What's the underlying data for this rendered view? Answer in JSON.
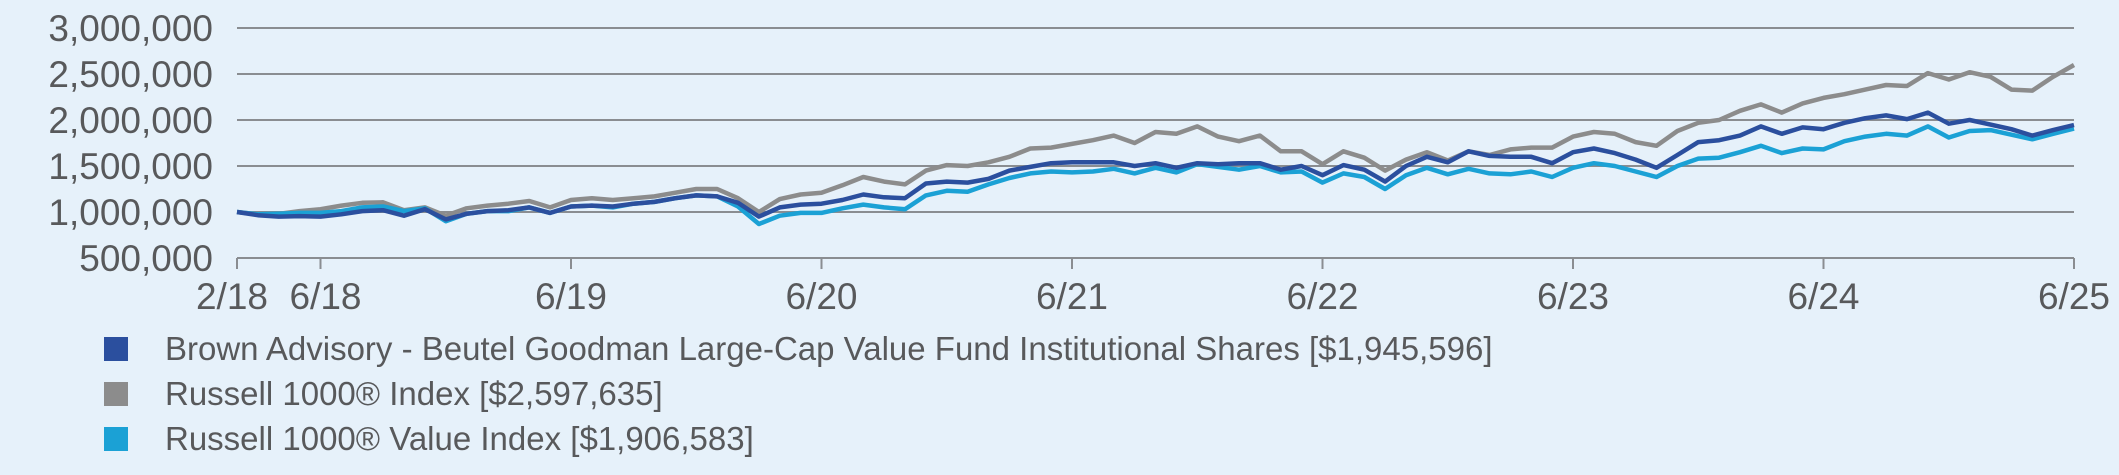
{
  "chart_data": {
    "type": "line",
    "title": "",
    "xlabel": "",
    "ylabel": "",
    "ylim": [
      500000,
      3000000
    ],
    "yticks": [
      500000,
      1000000,
      1500000,
      2000000,
      2500000,
      3000000
    ],
    "ytick_labels": [
      "500,000",
      "1,000,000",
      "1,500,000",
      "2,000,000",
      "2,500,000",
      "3,000,000"
    ],
    "x_start": "2018-02",
    "x_end": "2025-06",
    "x_frequency": "monthly",
    "xticks": [
      {
        "month_index": 0,
        "label": "2/18"
      },
      {
        "month_index": 4,
        "label": "6/18"
      },
      {
        "month_index": 16,
        "label": "6/19"
      },
      {
        "month_index": 28,
        "label": "6/20"
      },
      {
        "month_index": 40,
        "label": "6/21"
      },
      {
        "month_index": 52,
        "label": "6/22"
      },
      {
        "month_index": 64,
        "label": "6/23"
      },
      {
        "month_index": 76,
        "label": "6/24"
      },
      {
        "month_index": 88,
        "label": "6/25"
      }
    ],
    "grid": true,
    "legend_position": "bottom-left",
    "series": [
      {
        "name": "Brown Advisory - Beutel Goodman Large-Cap Value Fund Institutional Shares [$1,945,596]",
        "color": "#2b4f9e",
        "values": [
          1000000,
          965000,
          950000,
          955000,
          950000,
          975000,
          1010000,
          1020000,
          960000,
          1030000,
          920000,
          980000,
          1010000,
          1020000,
          1050000,
          990000,
          1060000,
          1070000,
          1060000,
          1090000,
          1110000,
          1150000,
          1180000,
          1170000,
          1100000,
          950000,
          1050000,
          1080000,
          1090000,
          1130000,
          1190000,
          1160000,
          1150000,
          1310000,
          1330000,
          1320000,
          1360000,
          1450000,
          1490000,
          1530000,
          1540000,
          1540000,
          1540000,
          1500000,
          1530000,
          1480000,
          1530000,
          1520000,
          1530000,
          1530000,
          1460000,
          1500000,
          1400000,
          1510000,
          1460000,
          1330000,
          1500000,
          1600000,
          1540000,
          1660000,
          1610000,
          1600000,
          1600000,
          1530000,
          1650000,
          1690000,
          1640000,
          1570000,
          1480000,
          1620000,
          1760000,
          1780000,
          1830000,
          1930000,
          1850000,
          1920000,
          1900000,
          1970000,
          2020000,
          2050000,
          2010000,
          2080000,
          1960000,
          2000000,
          1950000,
          1900000,
          1830000,
          1890000,
          1945596
        ]
      },
      {
        "name": "Russell 1000® Index [$2,597,635]",
        "color": "#8c8c8c",
        "values": [
          1000000,
          975000,
          980000,
          1010000,
          1030000,
          1070000,
          1100000,
          1105000,
          1020000,
          1050000,
          960000,
          1040000,
          1070000,
          1090000,
          1120000,
          1050000,
          1130000,
          1150000,
          1130000,
          1150000,
          1170000,
          1210000,
          1250000,
          1250000,
          1150000,
          1000000,
          1140000,
          1190000,
          1210000,
          1290000,
          1380000,
          1330000,
          1300000,
          1450000,
          1510000,
          1500000,
          1540000,
          1600000,
          1690000,
          1700000,
          1740000,
          1780000,
          1830000,
          1750000,
          1870000,
          1850000,
          1930000,
          1820000,
          1770000,
          1830000,
          1660000,
          1660000,
          1520000,
          1660000,
          1590000,
          1450000,
          1570000,
          1650000,
          1560000,
          1660000,
          1620000,
          1680000,
          1700000,
          1700000,
          1820000,
          1870000,
          1850000,
          1760000,
          1720000,
          1880000,
          1970000,
          2000000,
          2100000,
          2170000,
          2080000,
          2180000,
          2240000,
          2280000,
          2330000,
          2380000,
          2370000,
          2510000,
          2440000,
          2520000,
          2470000,
          2330000,
          2320000,
          2470000,
          2597635
        ]
      },
      {
        "name": "Russell 1000® Value Index [$1,906,583]",
        "color": "#1ba1d5",
        "values": [
          1000000,
          975000,
          980000,
          990000,
          990000,
          1010000,
          1050000,
          1060000,
          1010000,
          1040000,
          900000,
          980000,
          1010000,
          1010000,
          1050000,
          990000,
          1060000,
          1070000,
          1050000,
          1090000,
          1110000,
          1150000,
          1180000,
          1170000,
          1060000,
          870000,
          960000,
          990000,
          990000,
          1040000,
          1080000,
          1050000,
          1030000,
          1180000,
          1230000,
          1220000,
          1300000,
          1370000,
          1420000,
          1440000,
          1430000,
          1440000,
          1470000,
          1420000,
          1480000,
          1430000,
          1520000,
          1490000,
          1460000,
          1500000,
          1430000,
          1440000,
          1320000,
          1420000,
          1380000,
          1250000,
          1400000,
          1480000,
          1410000,
          1470000,
          1420000,
          1410000,
          1440000,
          1380000,
          1480000,
          1530000,
          1500000,
          1440000,
          1380000,
          1500000,
          1580000,
          1590000,
          1650000,
          1720000,
          1640000,
          1690000,
          1680000,
          1770000,
          1820000,
          1850000,
          1830000,
          1930000,
          1810000,
          1880000,
          1890000,
          1840000,
          1790000,
          1850000,
          1906583
        ]
      }
    ]
  }
}
